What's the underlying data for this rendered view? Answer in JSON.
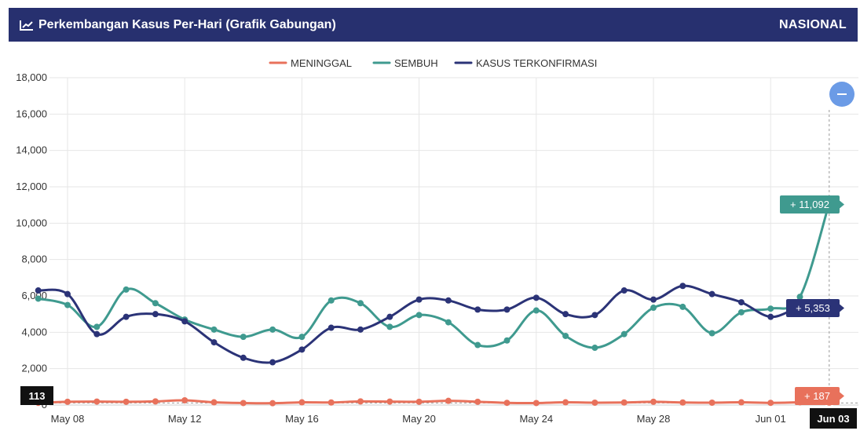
{
  "header": {
    "title": "Perkembangan Kasus Per-Hari (Grafik Gabungan)",
    "scope": "NASIONAL",
    "icon": "line-chart-icon",
    "background": "#27306f"
  },
  "reset_button": {
    "icon": "minus-icon",
    "color": "#6b9be6"
  },
  "chart_data": {
    "type": "line",
    "title": "Perkembangan Kasus Per-Hari (Grafik Gabungan)",
    "x_tick_labels": [
      "May 08",
      "May 12",
      "May 16",
      "May 20",
      "May 24",
      "May 28",
      "Jun 01",
      "Jun 03"
    ],
    "x": [
      "May 07",
      "May 08",
      "May 09",
      "May 10",
      "May 11",
      "May 12",
      "May 13",
      "May 14",
      "May 15",
      "May 16",
      "May 17",
      "May 18",
      "May 19",
      "May 20",
      "May 21",
      "May 22",
      "May 23",
      "May 24",
      "May 25",
      "May 26",
      "May 27",
      "May 28",
      "May 29",
      "May 30",
      "May 31",
      "Jun 01",
      "Jun 02",
      "Jun 03"
    ],
    "ylim": [
      0,
      18000
    ],
    "y_ticks": [
      "0",
      "2,000",
      "4,000",
      "6,000",
      "8,000",
      "10,000",
      "12,000",
      "14,000",
      "16,000",
      "18,000"
    ],
    "y_tick_values": [
      0,
      2000,
      4000,
      6000,
      8000,
      10000,
      12000,
      14000,
      16000,
      18000
    ],
    "grid": true,
    "legend_position": "top-center",
    "series": [
      {
        "name": "MENINGGAL",
        "color": "#e8715b",
        "values": [
          120,
          180,
          190,
          180,
          200,
          260,
          150,
          110,
          100,
          150,
          140,
          200,
          190,
          180,
          230,
          180,
          120,
          110,
          150,
          130,
          140,
          180,
          140,
          130,
          150,
          120,
          150,
          187
        ]
      },
      {
        "name": "SEMBUH",
        "color": "#3f9a8f",
        "values": [
          5850,
          5500,
          4300,
          6350,
          5600,
          4700,
          4150,
          3750,
          4150,
          3750,
          5750,
          5600,
          4300,
          4950,
          4550,
          3300,
          3550,
          5200,
          3800,
          3150,
          3900,
          5350,
          5400,
          3950,
          5100,
          5300,
          5950,
          11092
        ]
      },
      {
        "name": "KASUS TERKONFIRMASI",
        "color": "#2b3377",
        "values": [
          6300,
          6100,
          3900,
          4850,
          5000,
          4600,
          3450,
          2600,
          2350,
          3050,
          4250,
          4150,
          4850,
          5800,
          5750,
          5250,
          5250,
          5900,
          5000,
          4950,
          6300,
          5800,
          6550,
          6100,
          5650,
          4850,
          5350,
          5353
        ]
      }
    ],
    "callouts": [
      {
        "series": "SEMBUH",
        "text": "+ 11,092",
        "color": "#3f9a8f"
      },
      {
        "series": "KASUS TERKONFIRMASI",
        "text": "+ 5,353",
        "color": "#2b3377"
      },
      {
        "series": "MENINGGAL",
        "text": "+ 187",
        "color": "#e8715b"
      }
    ],
    "crosshair": {
      "x_label": "Jun 03",
      "y_label": "113"
    }
  }
}
